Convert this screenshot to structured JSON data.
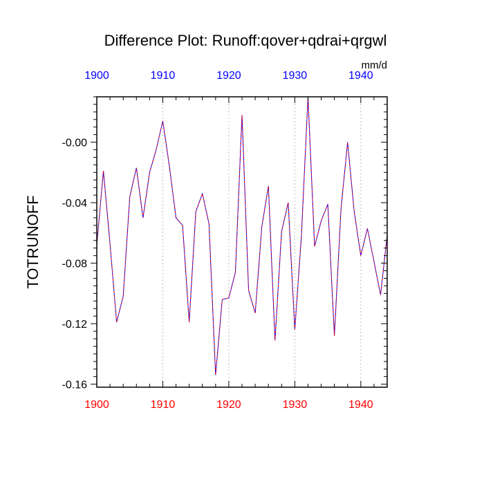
{
  "chart_data": {
    "type": "line",
    "title": "Difference Plot: Runoff:qover+qdrai+qrgwl",
    "units": "mm/d",
    "ylabel": "TOTRUNOFF",
    "xlabel": "",
    "xlim": [
      1900,
      1944
    ],
    "ylim": [
      -0.162,
      0.03
    ],
    "x_ticks": [
      1900,
      1910,
      1920,
      1930,
      1940
    ],
    "y_ticks": [
      0.0,
      -0.04,
      -0.08,
      -0.12,
      -0.16
    ],
    "y_tick_labels": [
      "-0.00",
      "-0.04",
      "-0.08",
      "-0.12",
      "-0.16"
    ],
    "top_axis_ticks": [
      1900,
      1910,
      1920,
      1930,
      1940
    ],
    "x_grid": true,
    "y_grid": false,
    "series": [
      {
        "color_dash": "#ff0000",
        "color_line": "#0000ff",
        "x": [
          1900,
          1901,
          1902,
          1903,
          1904,
          1905,
          1906,
          1907,
          1908,
          1909,
          1910,
          1911,
          1912,
          1913,
          1914,
          1915,
          1916,
          1917,
          1918,
          1919,
          1920,
          1921,
          1922,
          1923,
          1924,
          1925,
          1926,
          1927,
          1928,
          1929,
          1930,
          1931,
          1932,
          1933,
          1934,
          1935,
          1936,
          1937,
          1938,
          1939,
          1940,
          1941,
          1942,
          1943,
          1944
        ],
        "y": [
          -0.068,
          -0.019,
          -0.067,
          -0.119,
          -0.102,
          -0.036,
          -0.017,
          -0.05,
          -0.02,
          -0.005,
          0.014,
          -0.016,
          -0.05,
          -0.055,
          -0.119,
          -0.046,
          -0.034,
          -0.054,
          -0.154,
          -0.104,
          -0.103,
          -0.086,
          0.018,
          -0.098,
          -0.113,
          -0.056,
          -0.029,
          -0.131,
          -0.059,
          -0.04,
          -0.124,
          -0.062,
          0.03,
          -0.069,
          -0.052,
          -0.041,
          -0.128,
          -0.044,
          0.0,
          -0.046,
          -0.075,
          -0.057,
          -0.079,
          -0.101,
          -0.061
        ]
      }
    ]
  }
}
